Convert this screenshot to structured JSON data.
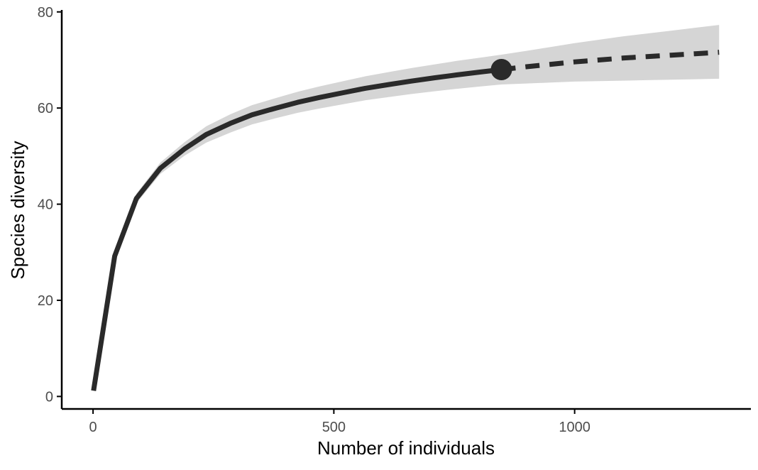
{
  "chart_data": {
    "type": "line",
    "title": "",
    "xlabel": "Number of individuals",
    "ylabel": "Species diversity",
    "xlim": [
      -65,
      1366
    ],
    "ylim": [
      -2.6,
      81
    ],
    "xticks": [
      0,
      500,
      1000
    ],
    "yticks": [
      0,
      20,
      40,
      60,
      80
    ],
    "grid": false,
    "legend": "none",
    "series": [
      {
        "kind": "rarefaction",
        "style": "solid",
        "x": [
          1,
          45,
          90,
          140,
          190,
          235,
          285,
          330,
          380,
          425,
          470,
          520,
          565,
          615,
          660,
          710,
          755,
          805,
          848
        ],
        "y": [
          1.2,
          29.2,
          41.2,
          47.5,
          51.5,
          54.5,
          56.8,
          58.6,
          60.0,
          61.2,
          62.2,
          63.2,
          64.1,
          64.9,
          65.6,
          66.3,
          66.9,
          67.5,
          68.0
        ],
        "lower": [
          1.2,
          28.7,
          40.2,
          46.3,
          50.1,
          52.8,
          54.9,
          56.6,
          57.9,
          59.0,
          59.9,
          60.8,
          61.6,
          62.3,
          62.9,
          63.5,
          64.0,
          64.5,
          64.9
        ],
        "upper": [
          1.2,
          29.7,
          42.2,
          48.7,
          52.9,
          56.2,
          58.7,
          60.6,
          62.1,
          63.4,
          64.5,
          65.6,
          66.6,
          67.5,
          68.3,
          69.1,
          69.8,
          70.5,
          71.1
        ]
      },
      {
        "kind": "extrapolation",
        "style": "dashed",
        "x": [
          848,
          900,
          950,
          1000,
          1050,
          1100,
          1150,
          1200,
          1250,
          1300
        ],
        "y": [
          68.0,
          68.6,
          69.1,
          69.6,
          70.0,
          70.4,
          70.7,
          71.0,
          71.3,
          71.6
        ],
        "lower": [
          64.9,
          65.1,
          65.3,
          65.5,
          65.6,
          65.7,
          65.8,
          65.9,
          66.0,
          66.1
        ],
        "upper": [
          71.1,
          71.9,
          72.7,
          73.5,
          74.2,
          74.9,
          75.5,
          76.1,
          76.7,
          77.3
        ]
      }
    ],
    "observed_point": {
      "x": 848,
      "y": 68.0
    },
    "colors": {
      "line": "#2a2a2a",
      "band": "#d5d5d5",
      "axis": "#000000",
      "tick_text": "#4d4d4d"
    }
  }
}
